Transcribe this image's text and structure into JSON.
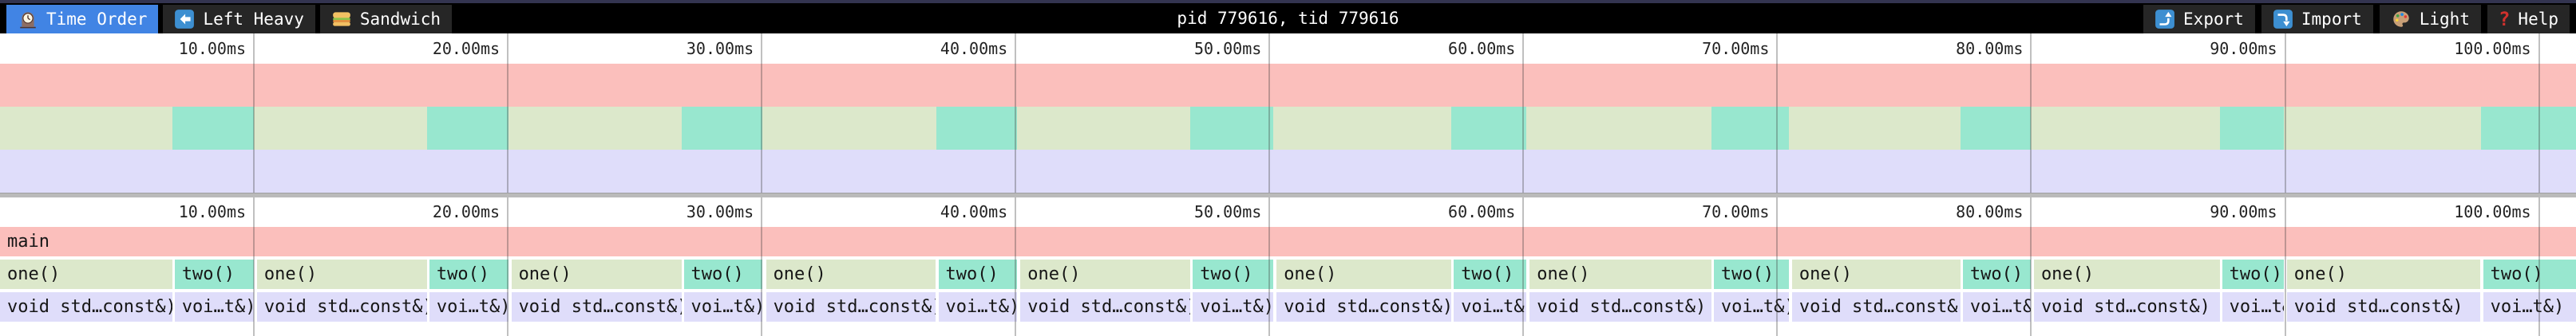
{
  "topbar": {
    "tabs": [
      {
        "label": "Time Order",
        "icon": "clock-icon",
        "active": true
      },
      {
        "label": "Left Heavy",
        "icon": "left-arrow-icon",
        "active": false
      },
      {
        "label": "Sandwich",
        "icon": "sandwich-icon",
        "active": false
      }
    ],
    "title": "pid 779616, tid 779616",
    "buttons": [
      {
        "label": "Export",
        "icon": "export-arrow-icon"
      },
      {
        "label": "Import",
        "icon": "import-arrow-icon"
      },
      {
        "label": "Light",
        "icon": "palette-icon"
      },
      {
        "label": "Help",
        "icon": "question-icon"
      }
    ]
  },
  "timeline": {
    "viewport_total_ms": 101.46,
    "tick_interval_ms": 10,
    "ticks": [
      {
        "ms": 10,
        "label": "10.00ms"
      },
      {
        "ms": 20,
        "label": "20.00ms"
      },
      {
        "ms": 30,
        "label": "30.00ms"
      },
      {
        "ms": 40,
        "label": "40.00ms"
      },
      {
        "ms": 50,
        "label": "50.00ms"
      },
      {
        "ms": 60,
        "label": "60.00ms"
      },
      {
        "ms": 70,
        "label": "70.00ms"
      },
      {
        "ms": 80,
        "label": "80.00ms"
      },
      {
        "ms": 90,
        "label": "90.00ms"
      },
      {
        "ms": 100,
        "label": "100.00ms"
      }
    ]
  },
  "colors": {
    "active_tab": "#4184e4",
    "frame_main": "#fbbfbc",
    "frame_one": "#dce8cb",
    "frame_two": "#98e7cf",
    "frame_void": "#dfddfa",
    "topline": "#333450",
    "divider": "#bababa"
  },
  "flame": {
    "depth0": [
      {
        "label": "main",
        "start_ms": 0,
        "end_ms": 101.46,
        "kind": "main"
      }
    ],
    "depth1": [
      {
        "label": "one()",
        "start_ms": 0.0,
        "end_ms": 6.79,
        "kind": "one"
      },
      {
        "label": "two()",
        "start_ms": 6.88,
        "end_ms": 9.99,
        "kind": "two"
      },
      {
        "label": "one()",
        "start_ms": 10.12,
        "end_ms": 16.81,
        "kind": "one"
      },
      {
        "label": "two()",
        "start_ms": 16.91,
        "end_ms": 20.02,
        "kind": "two"
      },
      {
        "label": "one()",
        "start_ms": 20.14,
        "end_ms": 26.84,
        "kind": "one"
      },
      {
        "label": "two()",
        "start_ms": 26.93,
        "end_ms": 30.04,
        "kind": "two"
      },
      {
        "label": "one()",
        "start_ms": 30.17,
        "end_ms": 36.86,
        "kind": "one"
      },
      {
        "label": "two()",
        "start_ms": 36.96,
        "end_ms": 40.07,
        "kind": "two"
      },
      {
        "label": "one()",
        "start_ms": 40.19,
        "end_ms": 46.89,
        "kind": "one"
      },
      {
        "label": "two()",
        "start_ms": 46.98,
        "end_ms": 50.16,
        "kind": "two"
      },
      {
        "label": "one()",
        "start_ms": 50.28,
        "end_ms": 57.16,
        "kind": "one"
      },
      {
        "label": "two()",
        "start_ms": 57.26,
        "end_ms": 60.12,
        "kind": "two"
      },
      {
        "label": "one()",
        "start_ms": 60.25,
        "end_ms": 67.41,
        "kind": "one"
      },
      {
        "label": "two()",
        "start_ms": 67.5,
        "end_ms": 70.46,
        "kind": "two"
      },
      {
        "label": "one()",
        "start_ms": 70.58,
        "end_ms": 77.22,
        "kind": "one"
      },
      {
        "label": "two()",
        "start_ms": 77.31,
        "end_ms": 79.98,
        "kind": "two"
      },
      {
        "label": "one()",
        "start_ms": 80.11,
        "end_ms": 87.43,
        "kind": "one"
      },
      {
        "label": "two()",
        "start_ms": 87.52,
        "end_ms": 89.94,
        "kind": "two"
      },
      {
        "label": "one()",
        "start_ms": 90.07,
        "end_ms": 97.7,
        "kind": "one"
      },
      {
        "label": "two()",
        "start_ms": 97.8,
        "end_ms": 101.46,
        "kind": "two"
      }
    ],
    "depth2": [
      {
        "label": "void std…const&)",
        "start_ms": 0.0,
        "end_ms": 6.79,
        "kind": "void"
      },
      {
        "label": "voi…t&)",
        "start_ms": 6.88,
        "end_ms": 9.99,
        "kind": "void"
      },
      {
        "label": "void std…const&)",
        "start_ms": 10.12,
        "end_ms": 16.81,
        "kind": "void"
      },
      {
        "label": "voi…t&)",
        "start_ms": 16.91,
        "end_ms": 20.02,
        "kind": "void"
      },
      {
        "label": "void std…const&)",
        "start_ms": 20.14,
        "end_ms": 26.84,
        "kind": "void"
      },
      {
        "label": "voi…t&)",
        "start_ms": 26.93,
        "end_ms": 30.04,
        "kind": "void"
      },
      {
        "label": "void std…const&)",
        "start_ms": 30.17,
        "end_ms": 36.86,
        "kind": "void"
      },
      {
        "label": "voi…t&)",
        "start_ms": 36.96,
        "end_ms": 40.07,
        "kind": "void"
      },
      {
        "label": "void std…const&)",
        "start_ms": 40.19,
        "end_ms": 46.89,
        "kind": "void"
      },
      {
        "label": "voi…t&)",
        "start_ms": 46.98,
        "end_ms": 50.16,
        "kind": "void"
      },
      {
        "label": "void std…const&)",
        "start_ms": 50.28,
        "end_ms": 57.16,
        "kind": "void"
      },
      {
        "label": "voi…t&)",
        "start_ms": 57.26,
        "end_ms": 60.12,
        "kind": "void"
      },
      {
        "label": "void std…const&)",
        "start_ms": 60.25,
        "end_ms": 67.41,
        "kind": "void"
      },
      {
        "label": "voi…t&)",
        "start_ms": 67.5,
        "end_ms": 70.46,
        "kind": "void"
      },
      {
        "label": "void std…const&)",
        "start_ms": 70.58,
        "end_ms": 77.22,
        "kind": "void"
      },
      {
        "label": "voi…t&)",
        "start_ms": 77.31,
        "end_ms": 79.98,
        "kind": "void"
      },
      {
        "label": "void std…const&)",
        "start_ms": 80.11,
        "end_ms": 87.43,
        "kind": "void"
      },
      {
        "label": "voi…t&)",
        "start_ms": 87.52,
        "end_ms": 89.94,
        "kind": "void"
      },
      {
        "label": "void std…const&)",
        "start_ms": 90.07,
        "end_ms": 97.7,
        "kind": "void"
      },
      {
        "label": "voi…t&)",
        "start_ms": 97.8,
        "end_ms": 101.46,
        "kind": "void"
      }
    ]
  }
}
